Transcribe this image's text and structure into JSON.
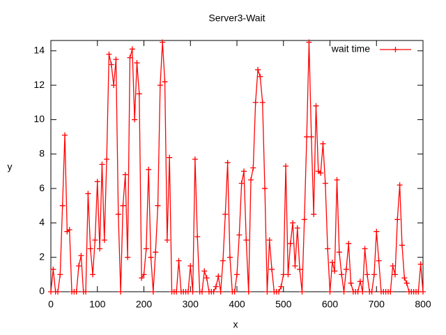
{
  "chart_data": {
    "type": "line",
    "title": "Server3-Wait",
    "x_label": "x",
    "y_label": "y",
    "x": [
      0,
      5,
      10,
      15,
      20,
      25,
      30,
      35,
      40,
      45,
      50,
      55,
      60,
      65,
      70,
      75,
      80,
      85,
      90,
      95,
      100,
      105,
      110,
      115,
      120,
      125,
      130,
      135,
      140,
      145,
      150,
      155,
      160,
      165,
      170,
      175,
      180,
      185,
      190,
      195,
      200,
      205,
      210,
      215,
      220,
      225,
      230,
      235,
      240,
      245,
      250,
      255,
      260,
      265,
      270,
      275,
      280,
      285,
      290,
      295,
      300,
      305,
      310,
      315,
      320,
      325,
      330,
      335,
      340,
      345,
      350,
      355,
      360,
      365,
      370,
      375,
      380,
      385,
      390,
      395,
      400,
      405,
      410,
      415,
      420,
      425,
      430,
      435,
      440,
      445,
      450,
      455,
      460,
      465,
      470,
      475,
      480,
      485,
      490,
      495,
      500,
      505,
      510,
      515,
      520,
      525,
      530,
      535,
      540,
      545,
      550,
      555,
      560,
      565,
      570,
      575,
      580,
      585,
      590,
      595,
      600,
      605,
      610,
      615,
      620,
      625,
      630,
      635,
      640,
      645,
      650,
      655,
      660,
      665,
      670,
      675,
      680,
      685,
      690,
      695,
      700,
      705,
      710,
      715,
      720,
      725,
      730,
      735,
      740,
      745,
      750,
      755,
      760,
      765,
      770,
      775,
      780,
      785,
      790,
      795,
      800
    ],
    "series": [
      {
        "name": "wait time",
        "color": "#ff0000",
        "values": [
          0,
          1.3,
          0,
          0,
          1,
          5,
          9.1,
          3.5,
          3.6,
          0,
          0,
          0,
          1.5,
          2.1,
          0,
          0,
          5.7,
          2.5,
          1,
          3,
          6.4,
          2.5,
          7.4,
          3,
          7.7,
          13.8,
          13.2,
          12,
          13.5,
          4.5,
          0,
          5,
          6.8,
          2,
          13.6,
          14.1,
          10,
          13.3,
          11.5,
          0.8,
          1,
          2.5,
          7.1,
          2,
          0,
          2.3,
          5,
          12,
          14.5,
          12.2,
          3,
          7.8,
          0,
          0,
          0,
          1.8,
          0,
          0,
          0,
          0,
          1.5,
          0,
          7.7,
          3.2,
          0,
          0,
          1.2,
          0.8,
          0,
          0,
          0,
          0.3,
          0.9,
          0,
          1.8,
          4.5,
          7.5,
          2,
          0,
          0,
          1,
          3.3,
          6.3,
          7,
          3,
          0,
          6.5,
          7.2,
          11,
          12.9,
          12.5,
          11,
          6,
          0,
          3,
          1.3,
          0,
          0,
          0,
          0.3,
          1,
          7.3,
          1,
          2.8,
          4,
          1.5,
          3.7,
          1.3,
          0,
          4.2,
          9,
          14.5,
          9,
          4.5,
          10.8,
          7,
          6.9,
          8.6,
          6.3,
          2.5,
          0,
          1.7,
          1.2,
          6.5,
          2.3,
          1,
          0,
          1.3,
          2.8,
          0.5,
          0,
          0,
          0,
          0.6,
          0,
          2.5,
          1,
          0,
          0,
          1,
          3.5,
          1.8,
          0,
          0,
          0,
          0,
          0,
          1.5,
          1,
          4.2,
          6.2,
          2.7,
          0.8,
          0.5,
          0,
          0,
          0,
          0,
          0,
          1.6,
          0
        ]
      }
    ],
    "xlim": [
      0,
      800
    ],
    "ylim": [
      0,
      14.6
    ],
    "xticks": [
      0,
      100,
      200,
      300,
      400,
      500,
      600,
      700,
      800
    ],
    "yticks": [
      0,
      2,
      4,
      6,
      8,
      10,
      12,
      14
    ],
    "legend": "top-right",
    "markers": true
  }
}
